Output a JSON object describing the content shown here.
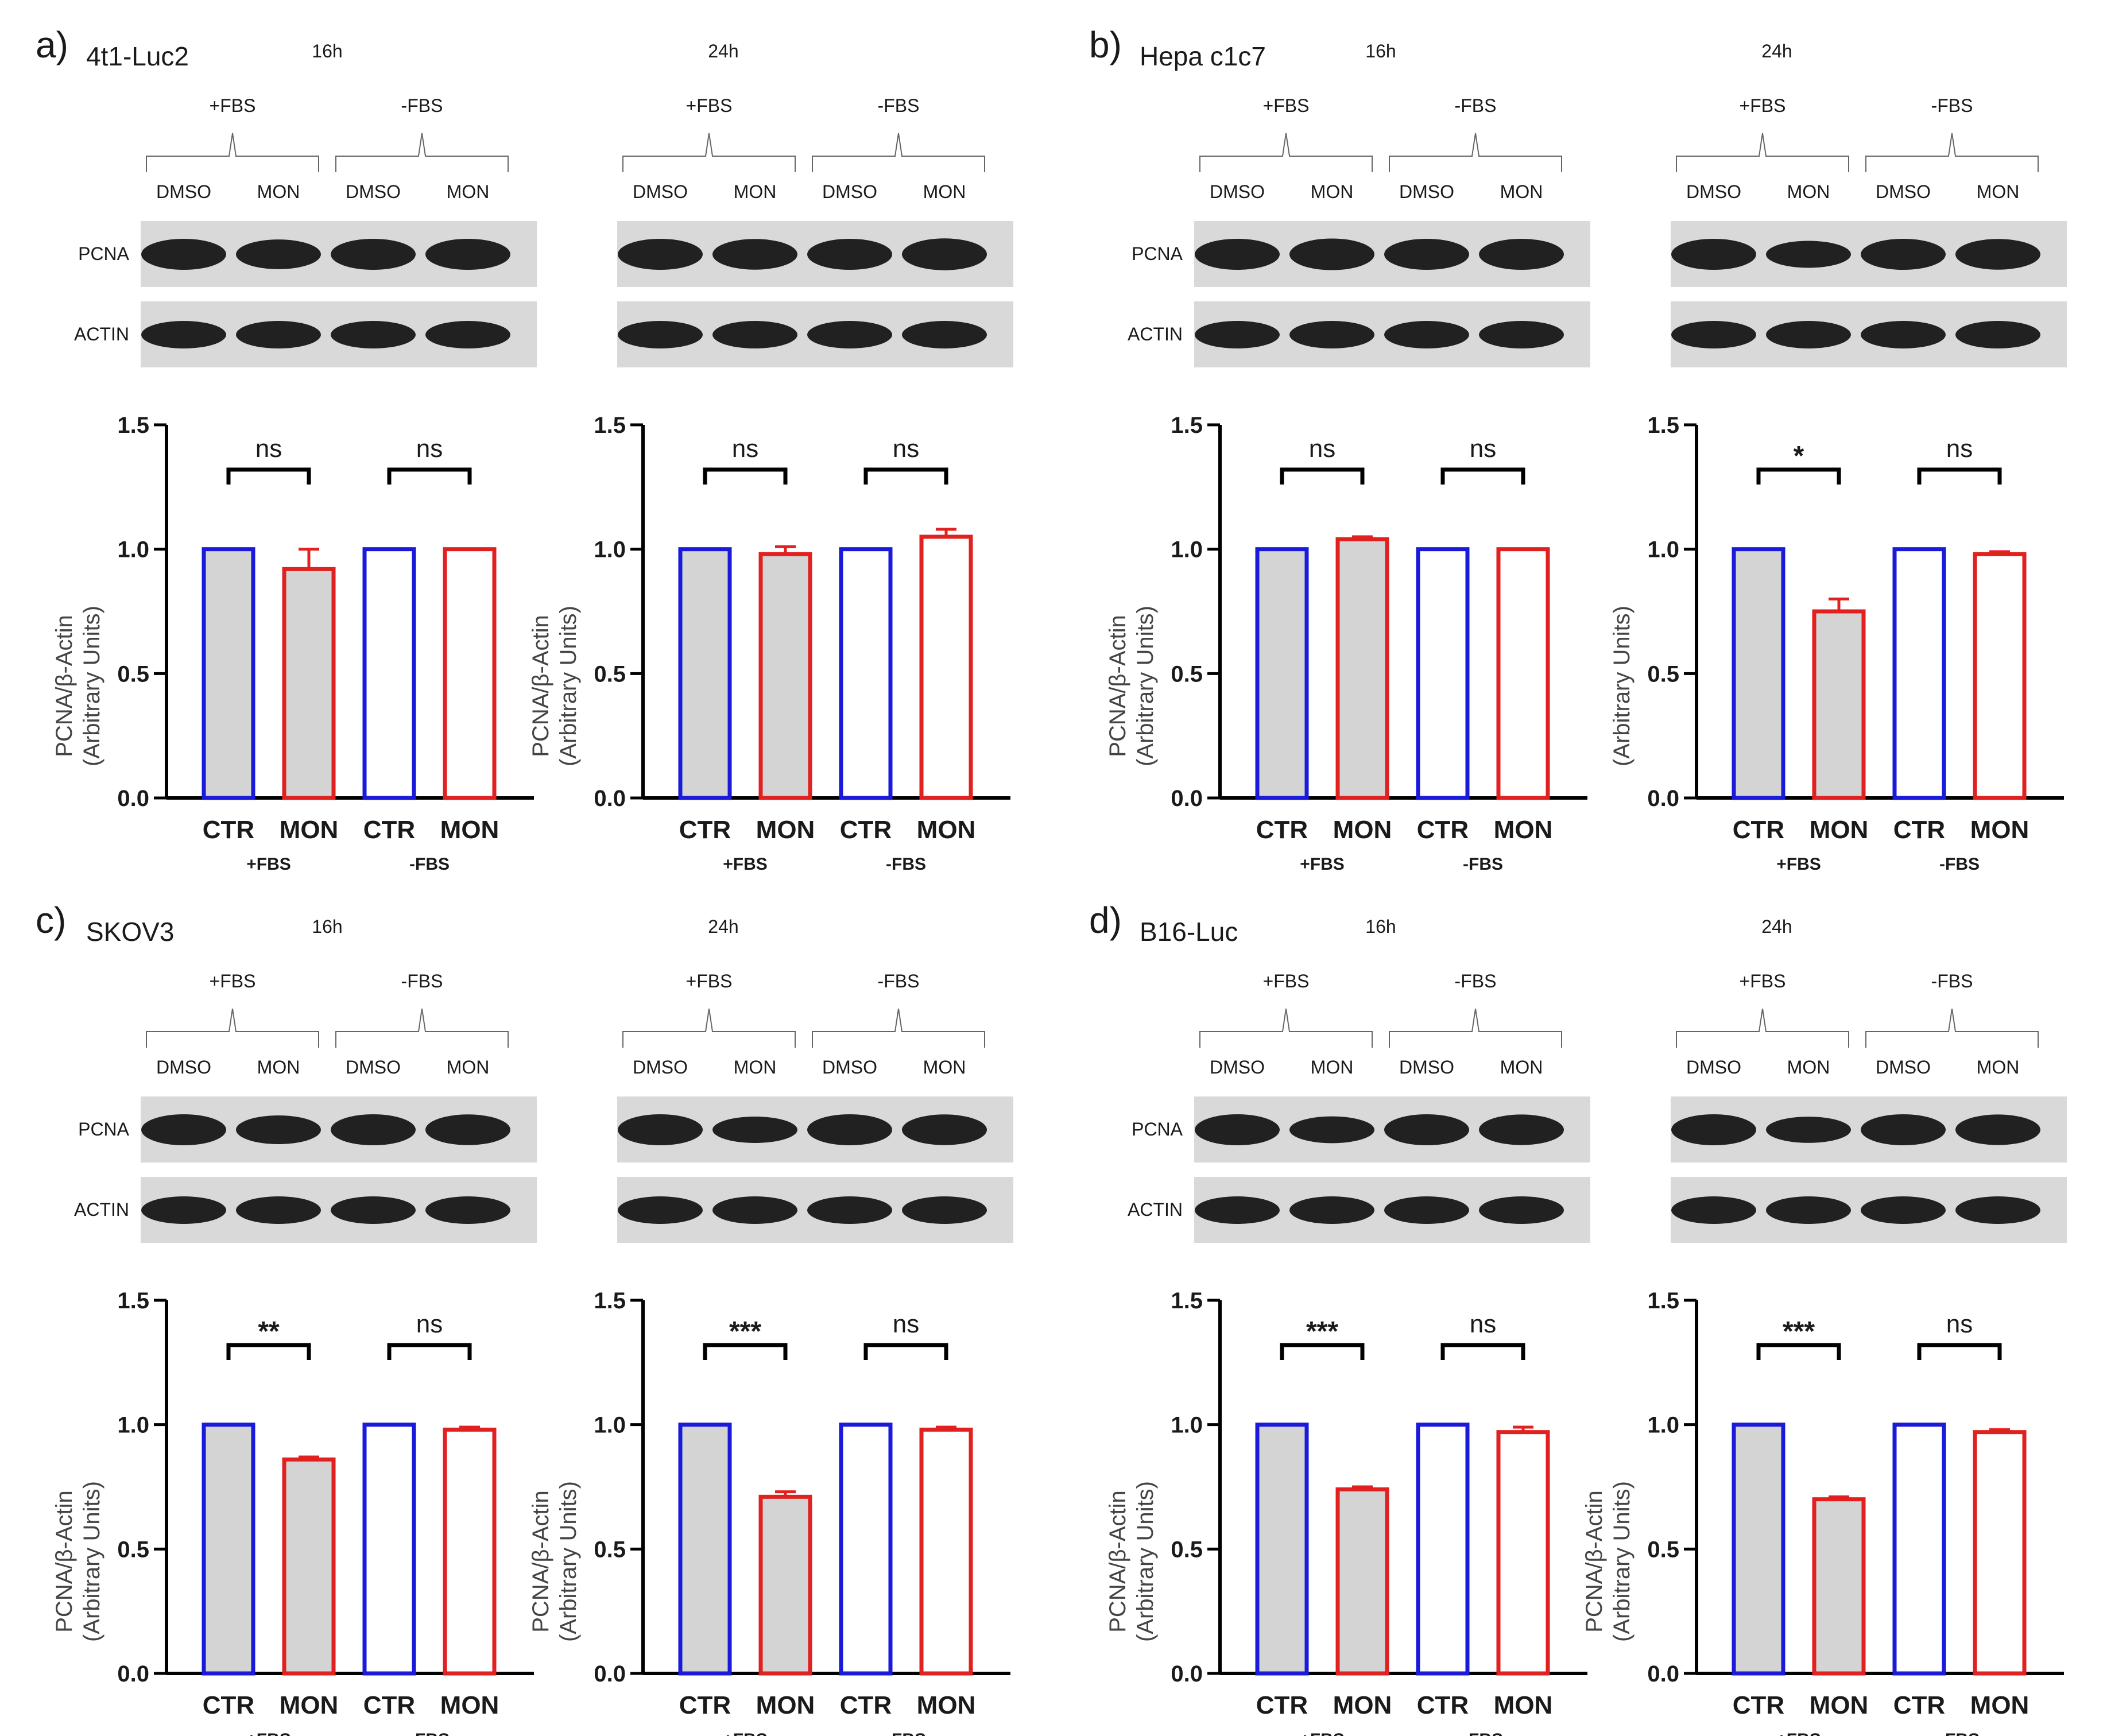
{
  "panels": [
    {
      "letter": "a)",
      "cell": "4t1-Luc2",
      "times": [
        {
          "time": "16h",
          "blot": {
            "groups": [
              "+FBS",
              "-FBS"
            ],
            "lanes": [
              "DMSO",
              "MON",
              "DMSO",
              "MON"
            ],
            "rows": [
              "PCNA",
              "ACTIN"
            ]
          },
          "chart_data": {
            "type": "bar",
            "categories": [
              "CTR",
              "MON",
              "CTR",
              "MON"
            ],
            "groups": [
              "+FBS",
              "-FBS"
            ],
            "values": [
              1.0,
              0.92,
              1.0,
              1.0
            ],
            "errors": [
              0,
              0.08,
              0,
              0
            ],
            "significance": [
              "ns",
              "ns"
            ],
            "ylabel": "PCNA/β-Actin",
            "ylabel2": "(Arbitrary Units)",
            "ylim": [
              0,
              1.5
            ],
            "yticks": [
              "0.0",
              "0.5",
              "1.0",
              "1.5"
            ]
          }
        },
        {
          "time": "24h",
          "blot": {
            "groups": [
              "+FBS",
              "-FBS"
            ],
            "lanes": [
              "DMSO",
              "MON",
              "DMSO",
              "MON"
            ],
            "rows": [
              "",
              ""
            ]
          },
          "chart_data": {
            "type": "bar",
            "categories": [
              "CTR",
              "MON",
              "CTR",
              "MON"
            ],
            "groups": [
              "+FBS",
              "-FBS"
            ],
            "values": [
              1.0,
              0.98,
              1.0,
              1.05
            ],
            "errors": [
              0,
              0.03,
              0,
              0.03
            ],
            "significance": [
              "ns",
              "ns"
            ],
            "ylabel": "PCNA/β-Actin",
            "ylabel2": "(Arbitrary Units)",
            "ylim": [
              0,
              1.5
            ],
            "yticks": [
              "0.0",
              "0.5",
              "1.0",
              "1.5"
            ]
          }
        }
      ]
    },
    {
      "letter": "b)",
      "cell": "Hepa c1c7",
      "times": [
        {
          "time": "16h",
          "blot": {
            "groups": [
              "+FBS",
              "-FBS"
            ],
            "lanes": [
              "DMSO",
              "MON",
              "DMSO",
              "MON"
            ],
            "rows": [
              "PCNA",
              "ACTIN"
            ]
          },
          "chart_data": {
            "type": "bar",
            "categories": [
              "CTR",
              "MON",
              "CTR",
              "MON"
            ],
            "groups": [
              "+FBS",
              "-FBS"
            ],
            "values": [
              1.0,
              1.04,
              1.0,
              1.0
            ],
            "errors": [
              0,
              0.01,
              0,
              0
            ],
            "significance": [
              "ns",
              "ns"
            ],
            "ylabel": "PCNA/β-Actin",
            "ylabel2": "(Arbitrary Units)",
            "ylim": [
              0,
              1.5
            ],
            "yticks": [
              "0.0",
              "0.5",
              "1.0",
              "1.5"
            ]
          }
        },
        {
          "time": "24h",
          "blot": {
            "groups": [
              "+FBS",
              "-FBS"
            ],
            "lanes": [
              "DMSO",
              "MON",
              "DMSO",
              "MON"
            ],
            "rows": [
              "",
              ""
            ]
          },
          "chart_data": {
            "type": "bar",
            "categories": [
              "CTR",
              "MON",
              "CTR",
              "MON"
            ],
            "groups": [
              "+FBS",
              "-FBS"
            ],
            "values": [
              1.0,
              0.75,
              1.0,
              0.98
            ],
            "errors": [
              0,
              0.05,
              0,
              0.01
            ],
            "significance": [
              "*",
              "ns"
            ],
            "ylabel": "",
            "ylabel2": "(Arbitrary Units)",
            "ylim": [
              0,
              1.5
            ],
            "yticks": [
              "0.0",
              "0.5",
              "1.0",
              "1.5"
            ]
          }
        }
      ]
    },
    {
      "letter": "c)",
      "cell": "SKOV3",
      "times": [
        {
          "time": "16h",
          "blot": {
            "groups": [
              "+FBS",
              "-FBS"
            ],
            "lanes": [
              "DMSO",
              "MON",
              "DMSO",
              "MON"
            ],
            "rows": [
              "PCNA",
              "ACTIN"
            ]
          },
          "chart_data": {
            "type": "bar",
            "categories": [
              "CTR",
              "MON",
              "CTR",
              "MON"
            ],
            "groups": [
              "+FBS",
              "-FBS"
            ],
            "values": [
              1.0,
              0.86,
              1.0,
              0.98
            ],
            "errors": [
              0,
              0.01,
              0,
              0.01
            ],
            "significance": [
              "**",
              "ns"
            ],
            "ylabel": "PCNA/β-Actin",
            "ylabel2": "(Arbitrary Units)",
            "ylim": [
              0,
              1.5
            ],
            "yticks": [
              "0.0",
              "0.5",
              "1.0",
              "1.5"
            ]
          }
        },
        {
          "time": "24h",
          "blot": {
            "groups": [
              "+FBS",
              "-FBS"
            ],
            "lanes": [
              "DMSO",
              "MON",
              "DMSO",
              "MON"
            ],
            "rows": [
              "",
              ""
            ]
          },
          "chart_data": {
            "type": "bar",
            "categories": [
              "CTR",
              "MON",
              "CTR",
              "MON"
            ],
            "groups": [
              "+FBS",
              "-FBS"
            ],
            "values": [
              1.0,
              0.71,
              1.0,
              0.98
            ],
            "errors": [
              0,
              0.02,
              0,
              0.01
            ],
            "significance": [
              "***",
              "ns"
            ],
            "ylabel": "PCNA/β-Actin",
            "ylabel2": "(Arbitrary Units)",
            "ylim": [
              0,
              1.5
            ],
            "yticks": [
              "0.0",
              "0.5",
              "1.0",
              "1.5"
            ]
          }
        }
      ]
    },
    {
      "letter": "d)",
      "cell": "B16-Luc",
      "times": [
        {
          "time": "16h",
          "blot": {
            "groups": [
              "+FBS",
              "-FBS"
            ],
            "lanes": [
              "DMSO",
              "MON",
              "DMSO",
              "MON"
            ],
            "rows": [
              "PCNA",
              "ACTIN"
            ]
          },
          "chart_data": {
            "type": "bar",
            "categories": [
              "CTR",
              "MON",
              "CTR",
              "MON"
            ],
            "groups": [
              "+FBS",
              "-FBS"
            ],
            "values": [
              1.0,
              0.74,
              1.0,
              0.97
            ],
            "errors": [
              0,
              0.01,
              0,
              0.02
            ],
            "significance": [
              "***",
              "ns"
            ],
            "ylabel": "PCNA/β-Actin",
            "ylabel2": "(Arbitrary Units)",
            "ylim": [
              0,
              1.5
            ],
            "yticks": [
              "0.0",
              "0.5",
              "1.0",
              "1.5"
            ]
          }
        },
        {
          "time": "24h",
          "blot": {
            "groups": [
              "+FBS",
              "-FBS"
            ],
            "lanes": [
              "DMSO",
              "MON",
              "DMSO",
              "MON"
            ],
            "rows": [
              "",
              ""
            ]
          },
          "chart_data": {
            "type": "bar",
            "categories": [
              "CTR",
              "MON",
              "CTR",
              "MON"
            ],
            "groups": [
              "+FBS",
              "-FBS"
            ],
            "values": [
              1.0,
              0.7,
              1.0,
              0.97
            ],
            "errors": [
              0,
              0.01,
              0,
              0.01
            ],
            "significance": [
              "***",
              "ns"
            ],
            "ylabel": "PCNA/β-Actin",
            "ylabel2": "(Arbitrary Units)",
            "ylim": [
              0,
              1.5
            ],
            "yticks": [
              "0.0",
              "0.5",
              "1.0",
              "1.5"
            ]
          }
        }
      ]
    }
  ],
  "colors": {
    "ctr_edge": "#1a1adb",
    "mon_edge": "#e0211f",
    "plus_fbs_fill": "#d4d4d4",
    "minus_fbs_fill": "#ffffff",
    "axis": "#000000",
    "blot_bg": "#d9d9d9"
  }
}
